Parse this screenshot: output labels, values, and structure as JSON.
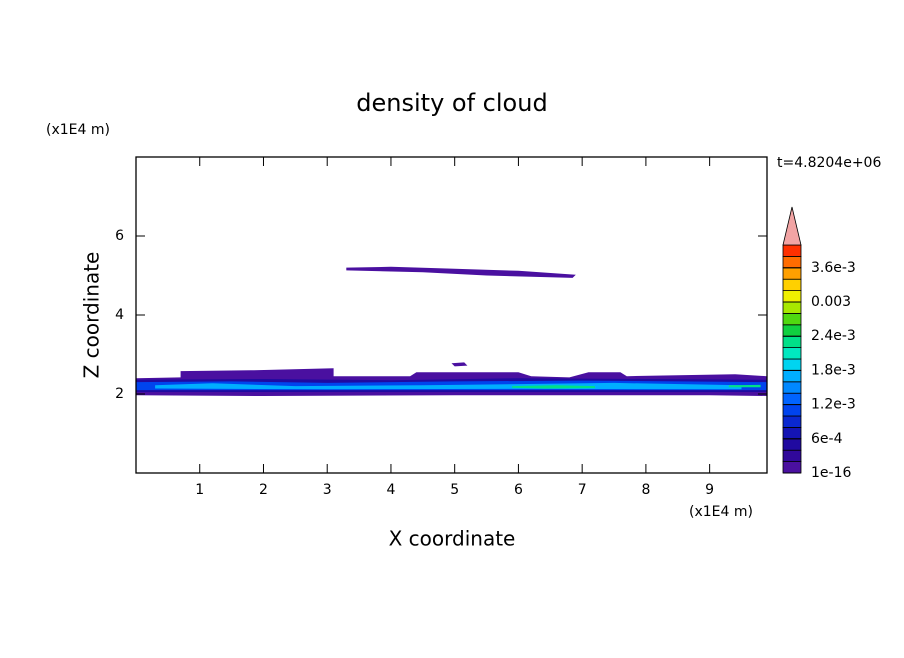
{
  "chart_data": {
    "type": "contour",
    "title": "density of cloud",
    "annotation": "t=4.8204e+06",
    "x_label": "X coordinate",
    "x_unit": "(x1E4 m)",
    "y_label": "Z coordinate",
    "y_unit": "(x1E4 m)",
    "xlim": [
      0,
      9.9
    ],
    "ylim": [
      0,
      8
    ],
    "xticks": [
      1,
      2,
      3,
      4,
      5,
      6,
      7,
      8,
      9
    ],
    "yticks": [
      2,
      4,
      6
    ],
    "colorbar": {
      "lim": [
        0,
        0.004
      ],
      "ticks": [
        {
          "value": 1e-16,
          "label": "1e-16"
        },
        {
          "value": 0.0006,
          "label": "6e-4"
        },
        {
          "value": 0.0012,
          "label": "1.2e-3"
        },
        {
          "value": 0.0018,
          "label": "1.8e-3"
        },
        {
          "value": 0.0024,
          "label": "2.4e-3"
        },
        {
          "value": 0.003,
          "label": "0.003"
        },
        {
          "value": 0.0036,
          "label": "3.6e-3"
        }
      ],
      "colors": [
        "#4a10a0",
        "#30089a",
        "#200aa0",
        "#1414b4",
        "#0a28d0",
        "#0044ee",
        "#0064ff",
        "#0088ff",
        "#00aeff",
        "#00d4f0",
        "#00e8c0",
        "#00e088",
        "#10d040",
        "#50d810",
        "#a8e800",
        "#f0f000",
        "#ffd000",
        "#ffa000",
        "#ff6c00",
        "#ff3000"
      ],
      "extend_color": "#f2a4a4"
    },
    "regions": [
      {
        "value": 0.0001,
        "points": [
          [
            3.3,
            5.2
          ],
          [
            4.0,
            5.22
          ],
          [
            5.0,
            5.17
          ],
          [
            6.0,
            5.12
          ],
          [
            6.9,
            5.02
          ],
          [
            6.85,
            4.94
          ],
          [
            6.2,
            4.97
          ],
          [
            5.5,
            5.0
          ],
          [
            4.5,
            5.08
          ],
          [
            3.3,
            5.13
          ]
        ]
      },
      {
        "value": 0.0001,
        "points": [
          [
            4.95,
            2.78
          ],
          [
            5.15,
            2.8
          ],
          [
            5.2,
            2.72
          ],
          [
            5.0,
            2.7
          ]
        ]
      },
      {
        "value": 0.0001,
        "points": [
          [
            0,
            2.4
          ],
          [
            0.7,
            2.42
          ],
          [
            0.7,
            2.58
          ],
          [
            1.8,
            2.6
          ],
          [
            3.1,
            2.65
          ],
          [
            3.1,
            2.45
          ],
          [
            4.3,
            2.45
          ],
          [
            4.4,
            2.55
          ],
          [
            6.0,
            2.55
          ],
          [
            6.2,
            2.45
          ],
          [
            6.8,
            2.42
          ],
          [
            7.1,
            2.55
          ],
          [
            7.6,
            2.55
          ],
          [
            7.7,
            2.45
          ],
          [
            9.4,
            2.5
          ],
          [
            9.9,
            2.45
          ],
          [
            9.9,
            1.95
          ],
          [
            9.0,
            1.97
          ],
          [
            5.0,
            1.97
          ],
          [
            2.0,
            1.95
          ],
          [
            0,
            1.97
          ]
        ]
      },
      {
        "value": 0.0005,
        "points": [
          [
            0,
            2.36
          ],
          [
            2.0,
            2.38
          ],
          [
            4.0,
            2.35
          ],
          [
            6.0,
            2.4
          ],
          [
            8.0,
            2.38
          ],
          [
            9.9,
            2.36
          ],
          [
            9.9,
            2.05
          ],
          [
            0,
            2.05
          ]
        ]
      },
      {
        "value": 0.0011,
        "points": [
          [
            0,
            2.3
          ],
          [
            1.5,
            2.32
          ],
          [
            3.0,
            2.28
          ],
          [
            5.0,
            2.32
          ],
          [
            7.0,
            2.34
          ],
          [
            9.9,
            2.3
          ],
          [
            9.9,
            2.1
          ],
          [
            0,
            2.1
          ]
        ]
      },
      {
        "value": 0.0017,
        "points": [
          [
            0.3,
            2.22
          ],
          [
            1.2,
            2.27
          ],
          [
            2.5,
            2.2
          ],
          [
            4.5,
            2.22
          ],
          [
            6.0,
            2.25
          ],
          [
            7.5,
            2.28
          ],
          [
            9.5,
            2.22
          ],
          [
            9.5,
            2.12
          ],
          [
            6.0,
            2.13
          ],
          [
            3.0,
            2.12
          ],
          [
            0.3,
            2.14
          ]
        ]
      },
      {
        "value": 0.0023,
        "points": [
          [
            5.9,
            2.2
          ],
          [
            6.6,
            2.22
          ],
          [
            7.2,
            2.2
          ],
          [
            7.2,
            2.15
          ],
          [
            6.4,
            2.14
          ],
          [
            5.9,
            2.16
          ]
        ]
      },
      {
        "value": 0.0023,
        "points": [
          [
            9.3,
            2.22
          ],
          [
            9.8,
            2.23
          ],
          [
            9.8,
            2.17
          ],
          [
            9.3,
            2.17
          ]
        ]
      }
    ]
  }
}
